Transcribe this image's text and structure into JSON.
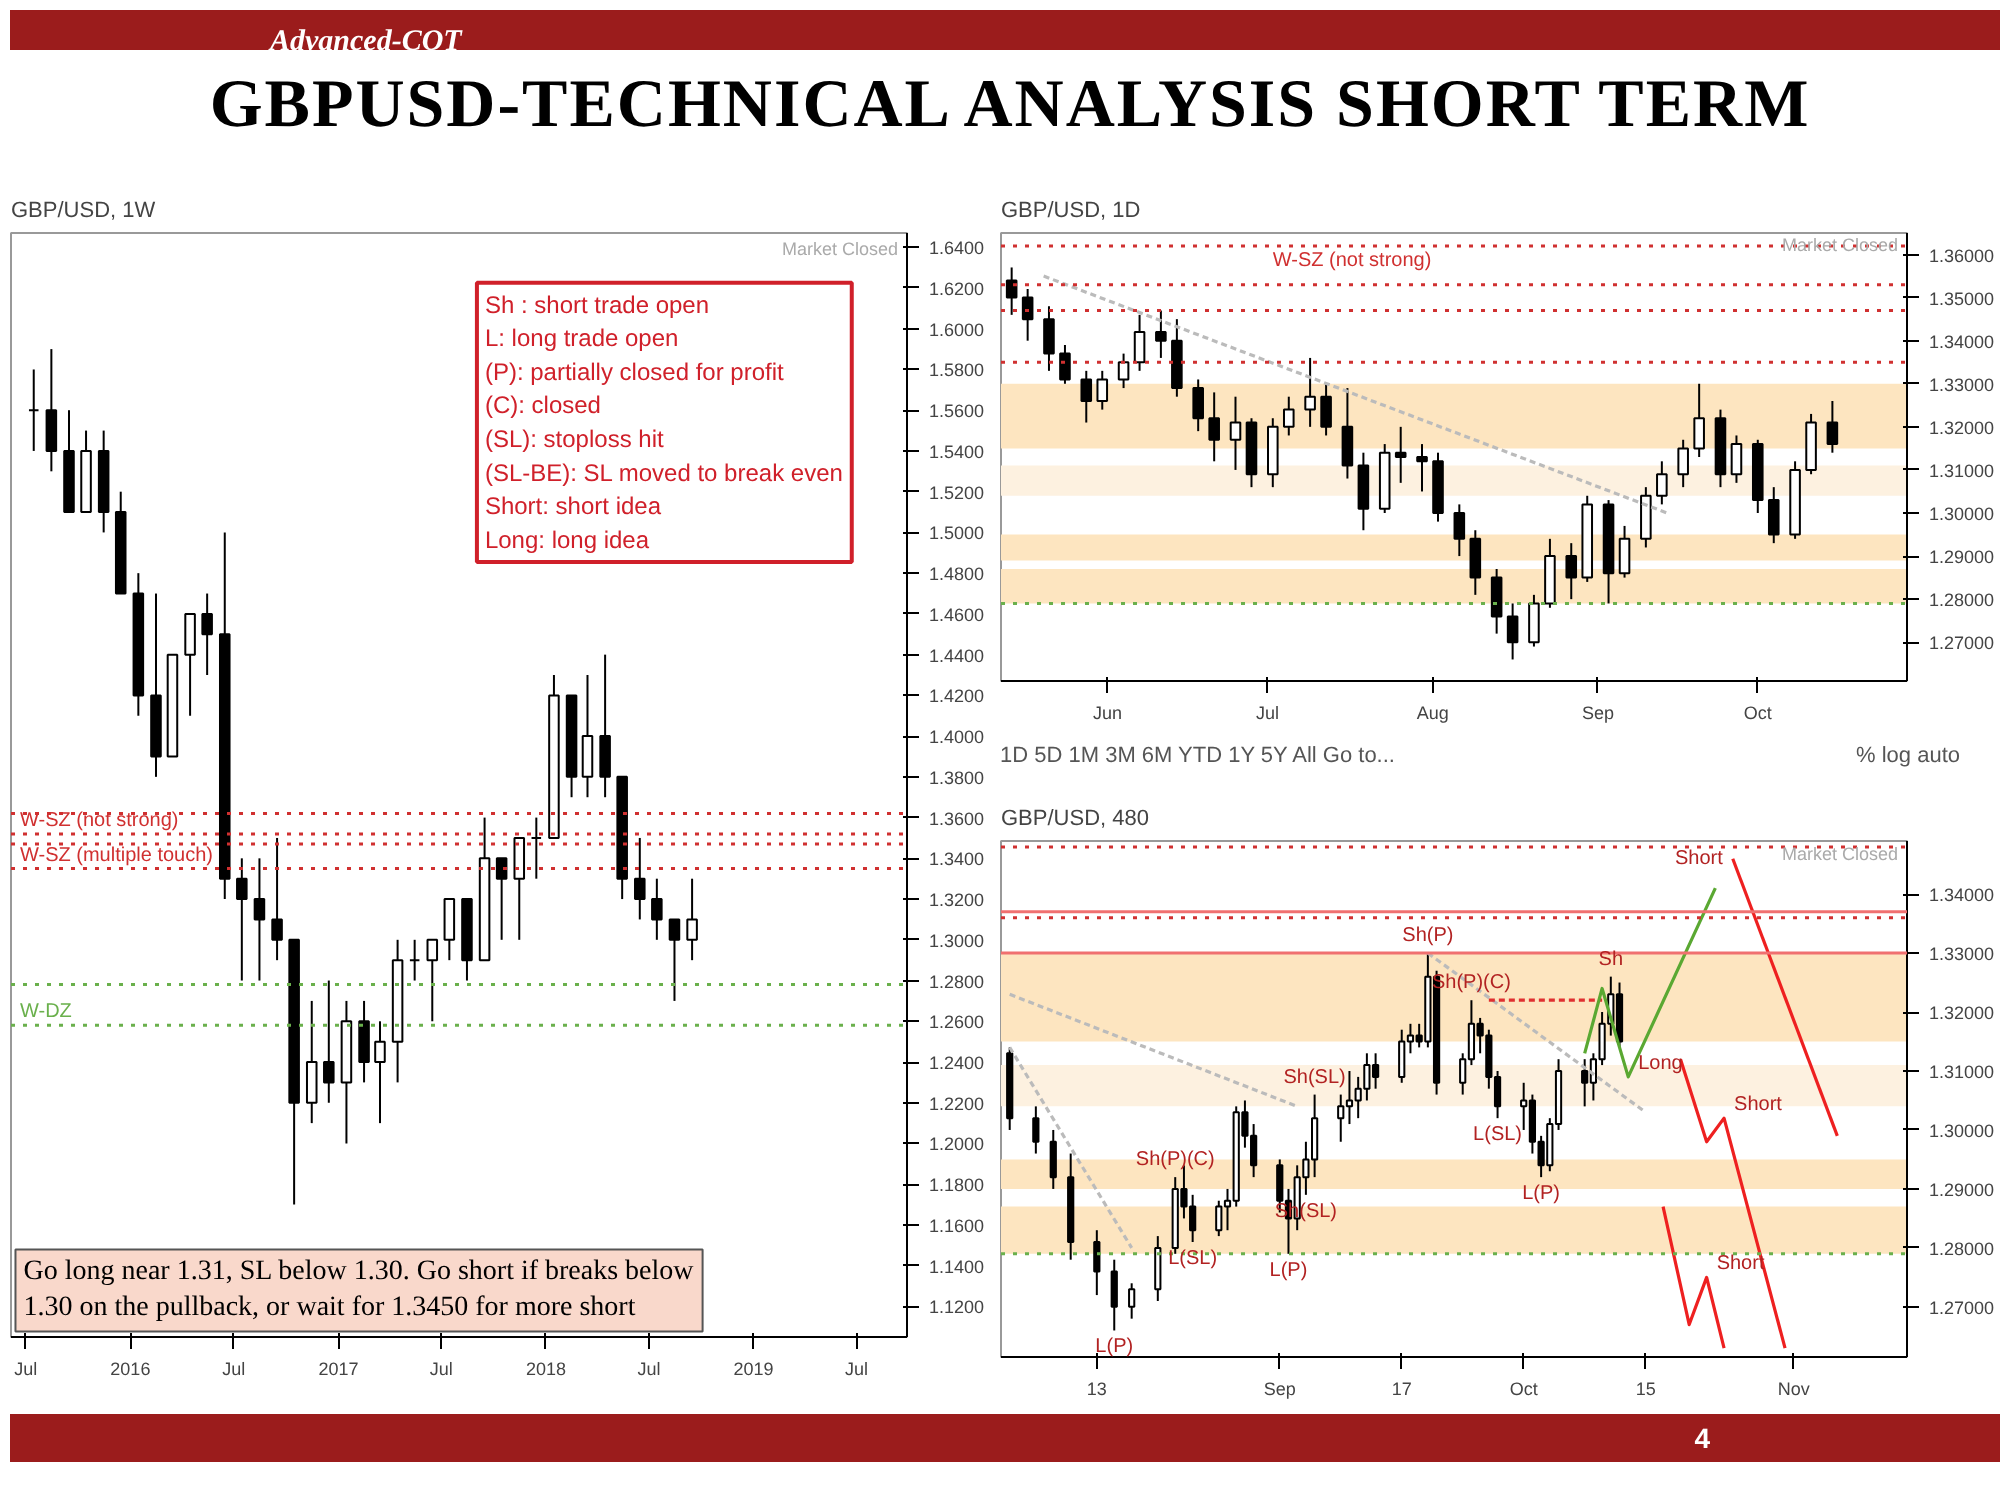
{
  "chart_data": [
    {
      "type": "candlestick",
      "title": "GBP/USD, 1W",
      "annotations": [
        "Advanced-COT",
        "GBPUSD-TECHNICAL ANALYSIS SHORT TERM",
        "Sh : short trade open",
        "L: long trade open",
        "(P): partially closed for profit",
        "(C): closed",
        "(SL): stoploss hit",
        "(SL-BE): SL moved to break even",
        "Short: short idea",
        "Long: long idea",
        "Go long near 1.31, SL below 1.30. Go short if breaks below 1.30 on the pullback, or wait for 1.3450 for more short",
        "Market Closed",
        "4"
      ],
      "xlim": [
        "2015-06-05",
        "2019-09-28"
      ],
      "ylim": [
        1.105,
        1.647
      ],
      "xticks": [
        {
          "value": "2015-07-01",
          "label": "Jul"
        },
        {
          "value": "2016-01-01",
          "label": "2016"
        },
        {
          "value": "2016-07-01",
          "label": "Jul"
        },
        {
          "value": "2017-01-01",
          "label": "2017"
        },
        {
          "value": "2017-07-01",
          "label": "Jul"
        },
        {
          "value": "2018-01-01",
          "label": "2018"
        },
        {
          "value": "2018-07-01",
          "label": "Jul"
        },
        {
          "value": "2019-01-01",
          "label": "2019"
        },
        {
          "value": "2019-07-01",
          "label": "Jul"
        }
      ],
      "yticks": [
        {
          "value": 1.12,
          "label": "1.1200"
        },
        {
          "value": 1.14,
          "label": "1.1400"
        },
        {
          "value": 1.16,
          "label": "1.1600"
        },
        {
          "value": 1.18,
          "label": "1.1800"
        },
        {
          "value": 1.2,
          "label": "1.2000"
        },
        {
          "value": 1.22,
          "label": "1.2200"
        },
        {
          "value": 1.24,
          "label": "1.2400"
        },
        {
          "value": 1.26,
          "label": "1.2600"
        },
        {
          "value": 1.28,
          "label": "1.2800"
        },
        {
          "value": 1.3,
          "label": "1.3000"
        },
        {
          "value": 1.32,
          "label": "1.3200"
        },
        {
          "value": 1.34,
          "label": "1.3400"
        },
        {
          "value": 1.36,
          "label": "1.3600"
        },
        {
          "value": 1.38,
          "label": "1.3800"
        },
        {
          "value": 1.4,
          "label": "1.4000"
        },
        {
          "value": 1.42,
          "label": "1.4200"
        },
        {
          "value": 1.44,
          "label": "1.4400"
        },
        {
          "value": 1.46,
          "label": "1.4600"
        },
        {
          "value": 1.48,
          "label": "1.4800"
        },
        {
          "value": 1.5,
          "label": "1.5000"
        },
        {
          "value": 1.52,
          "label": "1.5200"
        },
        {
          "value": 1.54,
          "label": "1.5400"
        },
        {
          "value": 1.56,
          "label": "1.5600"
        },
        {
          "value": 1.58,
          "label": "1.5800"
        },
        {
          "value": 1.6,
          "label": "1.6000"
        },
        {
          "value": 1.62,
          "label": "1.6200"
        },
        {
          "value": 1.64,
          "label": "1.6400"
        }
      ],
      "ref_lines": [
        {
          "axis": "y",
          "value": 1.362,
          "label": null,
          "color": "#d03030",
          "line_style": "dotted"
        },
        {
          "axis": "y",
          "value": 1.352,
          "label": "W-SZ (not strong)",
          "color": "#d03030",
          "line_style": "dotted"
        },
        {
          "axis": "y",
          "value": 1.347,
          "label": null,
          "color": "#d03030",
          "line_style": "dotted"
        },
        {
          "axis": "y",
          "value": 1.335,
          "label": "W-SZ (multiple touch)",
          "color": "#d03030",
          "line_style": "dotted"
        },
        {
          "axis": "y",
          "value": 1.278,
          "label": null,
          "color": "#6ab04c",
          "line_style": "dotted"
        },
        {
          "axis": "y",
          "value": 1.258,
          "label": "W-DZ",
          "color": "#6ab04c",
          "line_style": "dotted"
        }
      ],
      "x": [
        "2015-07-15",
        "2015-08-15",
        "2015-09-15",
        "2015-10-15",
        "2015-11-15",
        "2015-12-15",
        "2016-01-15",
        "2016-02-15",
        "2016-03-15",
        "2016-04-15",
        "2016-05-15",
        "2016-06-15",
        "2016-07-15",
        "2016-08-15",
        "2016-09-15",
        "2016-10-15",
        "2016-11-15",
        "2016-12-15",
        "2017-01-15",
        "2017-02-15",
        "2017-03-15",
        "2017-04-15",
        "2017-05-15",
        "2017-06-15",
        "2017-07-15",
        "2017-08-15",
        "2017-09-15",
        "2017-10-15",
        "2017-11-15",
        "2017-12-15",
        "2018-01-15",
        "2018-02-15",
        "2018-03-15",
        "2018-04-15",
        "2018-05-15",
        "2018-06-15",
        "2018-07-15",
        "2018-08-15",
        "2018-09-15"
      ],
      "ohlc": [
        [
          1.56,
          1.58,
          1.54,
          1.56
        ],
        [
          1.56,
          1.59,
          1.53,
          1.54
        ],
        [
          1.54,
          1.56,
          1.51,
          1.51
        ],
        [
          1.51,
          1.55,
          1.51,
          1.54
        ],
        [
          1.54,
          1.55,
          1.5,
          1.51
        ],
        [
          1.51,
          1.52,
          1.47,
          1.47
        ],
        [
          1.47,
          1.48,
          1.41,
          1.42
        ],
        [
          1.42,
          1.47,
          1.38,
          1.39
        ],
        [
          1.39,
          1.44,
          1.39,
          1.44
        ],
        [
          1.44,
          1.46,
          1.41,
          1.46
        ],
        [
          1.46,
          1.47,
          1.43,
          1.45
        ],
        [
          1.45,
          1.5,
          1.32,
          1.33
        ],
        [
          1.33,
          1.34,
          1.28,
          1.32
        ],
        [
          1.32,
          1.34,
          1.28,
          1.31
        ],
        [
          1.31,
          1.35,
          1.29,
          1.3
        ],
        [
          1.3,
          1.3,
          1.17,
          1.22
        ],
        [
          1.22,
          1.27,
          1.21,
          1.24
        ],
        [
          1.24,
          1.28,
          1.22,
          1.23
        ],
        [
          1.23,
          1.27,
          1.2,
          1.26
        ],
        [
          1.26,
          1.27,
          1.23,
          1.24
        ],
        [
          1.24,
          1.26,
          1.21,
          1.25
        ],
        [
          1.25,
          1.3,
          1.23,
          1.29
        ],
        [
          1.29,
          1.3,
          1.28,
          1.29
        ],
        [
          1.29,
          1.3,
          1.26,
          1.3
        ],
        [
          1.3,
          1.32,
          1.29,
          1.32
        ],
        [
          1.32,
          1.32,
          1.28,
          1.29
        ],
        [
          1.29,
          1.36,
          1.29,
          1.34
        ],
        [
          1.34,
          1.34,
          1.3,
          1.33
        ],
        [
          1.33,
          1.35,
          1.3,
          1.35
        ],
        [
          1.35,
          1.36,
          1.33,
          1.35
        ],
        [
          1.35,
          1.43,
          1.35,
          1.42
        ],
        [
          1.42,
          1.42,
          1.37,
          1.38
        ],
        [
          1.38,
          1.43,
          1.37,
          1.4
        ],
        [
          1.4,
          1.44,
          1.37,
          1.38
        ],
        [
          1.38,
          1.38,
          1.32,
          1.33
        ],
        [
          1.33,
          1.35,
          1.31,
          1.32
        ],
        [
          1.32,
          1.33,
          1.3,
          1.31
        ],
        [
          1.31,
          1.31,
          1.27,
          1.3
        ],
        [
          1.3,
          1.33,
          1.29,
          1.31
        ]
      ]
    },
    {
      "type": "candlestick",
      "title": "GBP/USD, 1D",
      "annotations": [
        "Market Closed",
        "1D   5D   1M   3M   6M   YTD   1Y   5Y   All      Go to...",
        "%   log   auto"
      ],
      "xlim": [
        "2018-05-12",
        "2018-10-29"
      ],
      "ylim": [
        1.261,
        1.365
      ],
      "xticks": [
        {
          "value": "2018-06-01",
          "label": "Jun"
        },
        {
          "value": "2018-07-01",
          "label": "Jul"
        },
        {
          "value": "2018-08-01",
          "label": "Aug"
        },
        {
          "value": "2018-09-01",
          "label": "Sep"
        },
        {
          "value": "2018-10-01",
          "label": "Oct"
        }
      ],
      "yticks": [
        {
          "value": 1.27,
          "label": "1.27000"
        },
        {
          "value": 1.28,
          "label": "1.28000"
        },
        {
          "value": 1.29,
          "label": "1.29000"
        },
        {
          "value": 1.3,
          "label": "1.30000"
        },
        {
          "value": 1.31,
          "label": "1.31000"
        },
        {
          "value": 1.32,
          "label": "1.32000"
        },
        {
          "value": 1.33,
          "label": "1.33000"
        },
        {
          "value": 1.34,
          "label": "1.34000"
        },
        {
          "value": 1.35,
          "label": "1.35000"
        },
        {
          "value": 1.36,
          "label": "1.36000"
        }
      ],
      "bands": [
        {
          "axis": "y",
          "from": 1.315,
          "to": 1.33,
          "color": "#fde5c0"
        },
        {
          "axis": "y",
          "from": 1.304,
          "to": 1.311,
          "color": "#fdf1e0"
        },
        {
          "axis": "y",
          "from": 1.289,
          "to": 1.295,
          "color": "#fde5c0"
        },
        {
          "axis": "y",
          "from": 1.279,
          "to": 1.287,
          "color": "#fde5c0"
        }
      ],
      "ref_lines": [
        {
          "axis": "y",
          "value": 1.362,
          "label": "W-SZ (not strong)",
          "color": "#d03030",
          "line_style": "dotted"
        },
        {
          "axis": "y",
          "value": 1.353,
          "label": null,
          "color": "#d03030",
          "line_style": "dotted"
        },
        {
          "axis": "y",
          "value": 1.347,
          "label": null,
          "color": "#d03030",
          "line_style": "dotted"
        },
        {
          "axis": "y",
          "value": 1.335,
          "label": null,
          "color": "#d03030",
          "line_style": "dotted"
        },
        {
          "axis": "y",
          "value": 1.279,
          "label": null,
          "color": "#6ab04c",
          "line_style": "dotted"
        }
      ],
      "x": [
        "2018-05-14",
        "2018-05-17",
        "2018-05-21",
        "2018-05-24",
        "2018-05-28",
        "2018-05-31",
        "2018-06-04",
        "2018-06-07",
        "2018-06-11",
        "2018-06-14",
        "2018-06-18",
        "2018-06-21",
        "2018-06-25",
        "2018-06-28",
        "2018-07-02",
        "2018-07-05",
        "2018-07-09",
        "2018-07-12",
        "2018-07-16",
        "2018-07-19",
        "2018-07-23",
        "2018-07-26",
        "2018-07-30",
        "2018-08-02",
        "2018-08-06",
        "2018-08-09",
        "2018-08-13",
        "2018-08-16",
        "2018-08-20",
        "2018-08-23",
        "2018-08-27",
        "2018-08-30",
        "2018-09-03",
        "2018-09-06",
        "2018-09-10",
        "2018-09-13",
        "2018-09-17",
        "2018-09-20",
        "2018-09-24",
        "2018-09-27",
        "2018-10-01",
        "2018-10-04",
        "2018-10-08",
        "2018-10-11",
        "2018-10-15"
      ],
      "ohlc": [
        [
          1.354,
          1.357,
          1.346,
          1.35
        ],
        [
          1.35,
          1.352,
          1.34,
          1.345
        ],
        [
          1.345,
          1.348,
          1.333,
          1.337
        ],
        [
          1.337,
          1.339,
          1.33,
          1.331
        ],
        [
          1.331,
          1.333,
          1.321,
          1.326
        ],
        [
          1.326,
          1.333,
          1.324,
          1.331
        ],
        [
          1.331,
          1.337,
          1.329,
          1.335
        ],
        [
          1.335,
          1.346,
          1.333,
          1.342
        ],
        [
          1.342,
          1.347,
          1.336,
          1.34
        ],
        [
          1.34,
          1.345,
          1.327,
          1.329
        ],
        [
          1.329,
          1.331,
          1.319,
          1.322
        ],
        [
          1.322,
          1.328,
          1.312,
          1.317
        ],
        [
          1.317,
          1.327,
          1.31,
          1.321
        ],
        [
          1.321,
          1.322,
          1.306,
          1.309
        ],
        [
          1.309,
          1.322,
          1.306,
          1.32
        ],
        [
          1.32,
          1.327,
          1.318,
          1.324
        ],
        [
          1.324,
          1.336,
          1.32,
          1.327
        ],
        [
          1.327,
          1.33,
          1.318,
          1.32
        ],
        [
          1.32,
          1.329,
          1.308,
          1.311
        ],
        [
          1.311,
          1.314,
          1.296,
          1.301
        ],
        [
          1.301,
          1.316,
          1.3,
          1.314
        ],
        [
          1.314,
          1.32,
          1.307,
          1.313
        ],
        [
          1.313,
          1.316,
          1.305,
          1.312
        ],
        [
          1.312,
          1.314,
          1.298,
          1.3
        ],
        [
          1.3,
          1.302,
          1.29,
          1.294
        ],
        [
          1.294,
          1.296,
          1.281,
          1.285
        ],
        [
          1.285,
          1.287,
          1.272,
          1.276
        ],
        [
          1.276,
          1.279,
          1.266,
          1.27
        ],
        [
          1.27,
          1.281,
          1.269,
          1.279
        ],
        [
          1.279,
          1.294,
          1.278,
          1.29
        ],
        [
          1.29,
          1.293,
          1.28,
          1.285
        ],
        [
          1.285,
          1.304,
          1.284,
          1.302
        ],
        [
          1.302,
          1.303,
          1.279,
          1.286
        ],
        [
          1.286,
          1.297,
          1.285,
          1.294
        ],
        [
          1.294,
          1.306,
          1.292,
          1.304
        ],
        [
          1.304,
          1.312,
          1.302,
          1.309
        ],
        [
          1.309,
          1.317,
          1.306,
          1.315
        ],
        [
          1.315,
          1.33,
          1.313,
          1.322
        ],
        [
          1.322,
          1.324,
          1.306,
          1.309
        ],
        [
          1.309,
          1.318,
          1.307,
          1.316
        ],
        [
          1.316,
          1.317,
          1.3,
          1.303
        ],
        [
          1.303,
          1.306,
          1.293,
          1.295
        ],
        [
          1.295,
          1.312,
          1.294,
          1.31
        ],
        [
          1.31,
          1.323,
          1.309,
          1.321
        ],
        [
          1.321,
          1.326,
          1.314,
          1.316
        ]
      ],
      "series": [
        {
          "type": "line",
          "color": "#bbbbbb",
          "line_style": "dashed",
          "x": [
            "2018-05-20",
            "2018-09-14"
          ],
          "values": [
            1.355,
            1.3
          ]
        }
      ]
    },
    {
      "type": "candlestick",
      "title": "GBP/USD, 480",
      "annotations": [
        "Market Closed",
        {
          "text": "Sh(P)",
          "x": "2018-09-20",
          "y": 1.33
        },
        {
          "text": "L(P)",
          "x": "2018-08-15",
          "y": 1.266
        },
        {
          "text": "L(P)",
          "x": "2018-09-04",
          "y": 1.279
        },
        {
          "text": "L(P)",
          "x": "2018-10-03",
          "y": 1.292
        },
        {
          "text": "Sh(P)(C)",
          "x": "2018-08-22",
          "y": 1.292
        },
        {
          "text": "Sh(P)(C)",
          "x": "2018-09-25",
          "y": 1.322
        },
        {
          "text": "Sh(SL)",
          "x": "2018-09-07",
          "y": 1.306
        },
        {
          "text": "Sh(SL)",
          "x": "2018-09-06",
          "y": 1.289
        },
        {
          "text": "L(SL)",
          "x": "2018-08-24",
          "y": 1.281
        },
        {
          "text": "L(SL)",
          "x": "2018-09-28",
          "y": 1.302
        },
        {
          "text": "Sh",
          "x": "2018-10-11",
          "y": 1.326
        },
        {
          "text": "Long",
          "x": "2018-10-13",
          "y": 1.309
        },
        {
          "text": "Short",
          "x": "2018-10-25",
          "y": 1.346
        },
        {
          "text": "Short",
          "x": "2018-10-24",
          "y": 1.302
        },
        {
          "text": "Short",
          "x": "2018-10-22",
          "y": 1.275
        }
      ],
      "xlim": [
        "2018-08-02",
        "2018-11-14"
      ],
      "ylim": [
        1.2615,
        1.349
      ],
      "xticks": [
        {
          "value": "2018-08-13",
          "label": "13"
        },
        {
          "value": "2018-09-03",
          "label": "Sep"
        },
        {
          "value": "2018-09-17",
          "label": "17"
        },
        {
          "value": "2018-10-01",
          "label": "Oct"
        },
        {
          "value": "2018-10-15",
          "label": "15"
        },
        {
          "value": "2018-11-01",
          "label": "Nov"
        }
      ],
      "yticks": [
        {
          "value": 1.27,
          "label": "1.27000"
        },
        {
          "value": 1.28,
          "label": "1.28000"
        },
        {
          "value": 1.29,
          "label": "1.29000"
        },
        {
          "value": 1.3,
          "label": "1.30000"
        },
        {
          "value": 1.31,
          "label": "1.31000"
        },
        {
          "value": 1.32,
          "label": "1.32000"
        },
        {
          "value": 1.33,
          "label": "1.33000"
        },
        {
          "value": 1.34,
          "label": "1.34000"
        }
      ],
      "bands": [
        {
          "axis": "y",
          "from": 1.315,
          "to": 1.33,
          "color": "#fde5c0"
        },
        {
          "axis": "y",
          "from": 1.304,
          "to": 1.311,
          "color": "#fdf1e0"
        },
        {
          "axis": "y",
          "from": 1.29,
          "to": 1.295,
          "color": "#fde5c0"
        },
        {
          "axis": "y",
          "from": 1.279,
          "to": 1.287,
          "color": "#fde5c0"
        }
      ],
      "ref_lines": [
        {
          "axis": "y",
          "value": 1.348,
          "label": null,
          "color": "#d03030",
          "line_style": "dotted"
        },
        {
          "axis": "y",
          "value": 1.337,
          "label": null,
          "color": "#f07070",
          "line_style": "solid"
        },
        {
          "axis": "y",
          "value": 1.336,
          "label": null,
          "color": "#d03030",
          "line_style": "dotted"
        },
        {
          "axis": "y",
          "value": 1.33,
          "label": null,
          "color": "#f07070",
          "line_style": "solid"
        },
        {
          "axis": "y",
          "value": 1.279,
          "label": null,
          "color": "#6ab04c",
          "line_style": "dotted"
        }
      ],
      "x": [
        "2018-08-03",
        "2018-08-06",
        "2018-08-08",
        "2018-08-10",
        "2018-08-13",
        "2018-08-15",
        "2018-08-17",
        "2018-08-20",
        "2018-08-22",
        "2018-08-23",
        "2018-08-24",
        "2018-08-27",
        "2018-08-28",
        "2018-08-29",
        "2018-08-30",
        "2018-08-31",
        "2018-09-03",
        "2018-09-04",
        "2018-09-05",
        "2018-09-06",
        "2018-09-07",
        "2018-09-10",
        "2018-09-11",
        "2018-09-12",
        "2018-09-13",
        "2018-09-14",
        "2018-09-17",
        "2018-09-18",
        "2018-09-19",
        "2018-09-20",
        "2018-09-21",
        "2018-09-24",
        "2018-09-25",
        "2018-09-26",
        "2018-09-27",
        "2018-09-28",
        "2018-10-01",
        "2018-10-02",
        "2018-10-03",
        "2018-10-04",
        "2018-10-05",
        "2018-10-08",
        "2018-10-09",
        "2018-10-10",
        "2018-10-11",
        "2018-10-12"
      ],
      "ohlc": [
        [
          1.313,
          1.314,
          1.3,
          1.302
        ],
        [
          1.302,
          1.304,
          1.296,
          1.298
        ],
        [
          1.298,
          1.3,
          1.29,
          1.292
        ],
        [
          1.292,
          1.296,
          1.278,
          1.281
        ],
        [
          1.281,
          1.283,
          1.272,
          1.276
        ],
        [
          1.276,
          1.278,
          1.266,
          1.27
        ],
        [
          1.27,
          1.274,
          1.268,
          1.273
        ],
        [
          1.273,
          1.282,
          1.271,
          1.28
        ],
        [
          1.28,
          1.292,
          1.279,
          1.29
        ],
        [
          1.29,
          1.294,
          1.285,
          1.287
        ],
        [
          1.287,
          1.289,
          1.281,
          1.283
        ],
        [
          1.283,
          1.288,
          1.282,
          1.287
        ],
        [
          1.287,
          1.29,
          1.283,
          1.288
        ],
        [
          1.288,
          1.304,
          1.287,
          1.303
        ],
        [
          1.303,
          1.305,
          1.297,
          1.299
        ],
        [
          1.299,
          1.301,
          1.292,
          1.294
        ],
        [
          1.294,
          1.295,
          1.286,
          1.288
        ],
        [
          1.288,
          1.29,
          1.279,
          1.285
        ],
        [
          1.285,
          1.294,
          1.283,
          1.292
        ],
        [
          1.292,
          1.298,
          1.289,
          1.295
        ],
        [
          1.295,
          1.306,
          1.292,
          1.302
        ],
        [
          1.302,
          1.306,
          1.298,
          1.304
        ],
        [
          1.304,
          1.31,
          1.301,
          1.305
        ],
        [
          1.305,
          1.309,
          1.302,
          1.307
        ],
        [
          1.307,
          1.313,
          1.305,
          1.311
        ],
        [
          1.311,
          1.313,
          1.307,
          1.309
        ],
        [
          1.309,
          1.317,
          1.308,
          1.315
        ],
        [
          1.315,
          1.318,
          1.313,
          1.316
        ],
        [
          1.316,
          1.318,
          1.314,
          1.315
        ],
        [
          1.315,
          1.33,
          1.314,
          1.326
        ],
        [
          1.326,
          1.327,
          1.306,
          1.308
        ],
        [
          1.308,
          1.313,
          1.306,
          1.312
        ],
        [
          1.312,
          1.322,
          1.311,
          1.318
        ],
        [
          1.318,
          1.319,
          1.313,
          1.316
        ],
        [
          1.316,
          1.317,
          1.307,
          1.309
        ],
        [
          1.309,
          1.31,
          1.302,
          1.304
        ],
        [
          1.304,
          1.308,
          1.3,
          1.305
        ],
        [
          1.305,
          1.306,
          1.296,
          1.298
        ],
        [
          1.298,
          1.299,
          1.292,
          1.294
        ],
        [
          1.294,
          1.302,
          1.293,
          1.301
        ],
        [
          1.301,
          1.312,
          1.3,
          1.31
        ],
        [
          1.31,
          1.312,
          1.304,
          1.308
        ],
        [
          1.308,
          1.313,
          1.305,
          1.312
        ],
        [
          1.312,
          1.32,
          1.311,
          1.318
        ],
        [
          1.318,
          1.326,
          1.316,
          1.323
        ],
        [
          1.323,
          1.325,
          1.314,
          1.315
        ]
      ],
      "series": [
        {
          "type": "line",
          "color": "#bbbbbb",
          "line_style": "dashed",
          "x": [
            "2018-08-03",
            "2018-08-17"
          ],
          "values": [
            1.314,
            1.28
          ]
        },
        {
          "type": "line",
          "color": "#bbbbbb",
          "line_style": "dashed",
          "x": [
            "2018-08-03",
            "2018-09-05"
          ],
          "values": [
            1.323,
            1.304
          ]
        },
        {
          "type": "line",
          "color": "#bbbbbb",
          "line_style": "dashed",
          "x": [
            "2018-09-20",
            "2018-10-15"
          ],
          "values": [
            1.33,
            1.303
          ]
        },
        {
          "type": "line",
          "color": "#e03030",
          "line_style": "dashed",
          "x": [
            "2018-09-27",
            "2018-10-10"
          ],
          "values": [
            1.322,
            1.322
          ]
        },
        {
          "type": "line",
          "color": "#5aa832",
          "line_style": "solid",
          "x": [
            "2018-10-08",
            "2018-10-10",
            "2018-10-13",
            "2018-10-23"
          ],
          "values": [
            1.313,
            1.324,
            1.309,
            1.341
          ]
        },
        {
          "type": "line",
          "color": "#ee2020",
          "line_style": "solid",
          "x": [
            "2018-10-25",
            "2018-11-06"
          ],
          "values": [
            1.346,
            1.299
          ]
        },
        {
          "type": "line",
          "color": "#ee2020",
          "line_style": "solid",
          "x": [
            "2018-10-19",
            "2018-10-22",
            "2018-10-24",
            "2018-10-31"
          ],
          "values": [
            1.312,
            1.298,
            1.302,
            1.263
          ]
        },
        {
          "type": "line",
          "color": "#ee2020",
          "line_style": "solid",
          "x": [
            "2018-10-17",
            "2018-10-20",
            "2018-10-22",
            "2018-10-24"
          ],
          "values": [
            1.287,
            1.267,
            1.275,
            1.263
          ]
        }
      ]
    }
  ]
}
